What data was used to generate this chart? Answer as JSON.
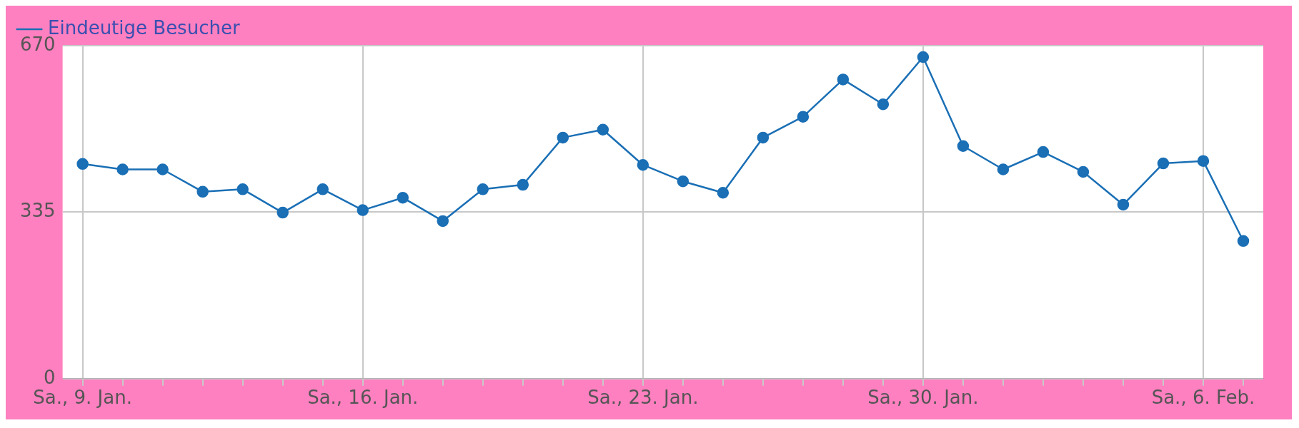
{
  "chart_data": {
    "type": "line",
    "categories": [
      "Sa., 9. Jan.",
      null,
      null,
      null,
      null,
      null,
      null,
      "Sa., 16. Jan.",
      null,
      null,
      null,
      null,
      null,
      null,
      "Sa., 23. Jan.",
      null,
      null,
      null,
      null,
      null,
      null,
      "Sa., 30. Jan.",
      null,
      null,
      null,
      null,
      null,
      null,
      "Sa., 6. Feb.",
      null
    ],
    "series": [
      {
        "name": "Eindeutige Besucher",
        "color": "#1a6fb5",
        "values": [
          432,
          421,
          421,
          376,
          381,
          334,
          381,
          339,
          364,
          317,
          381,
          390,
          485,
          501,
          430,
          397,
          374,
          485,
          527,
          602,
          552,
          647,
          468,
          421,
          456,
          416,
          350,
          433,
          438,
          277
        ]
      }
    ],
    "ylim": [
      0,
      670
    ],
    "yticks": [
      0,
      335,
      670
    ],
    "grid": true,
    "legend": "top left",
    "marker": "circle",
    "line_style": "solid"
  }
}
